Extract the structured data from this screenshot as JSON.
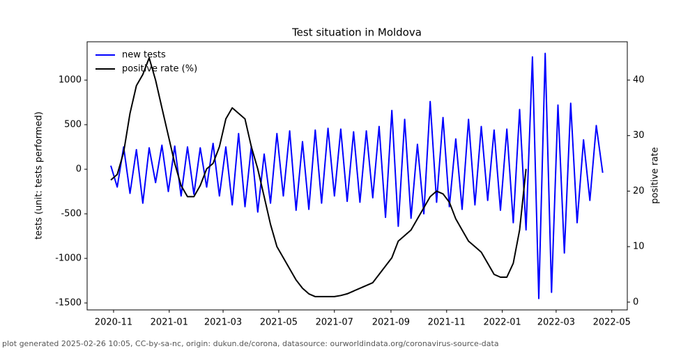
{
  "chart_data": {
    "type": "line",
    "title": "Test situation in Moldova",
    "y_label": "tests (unit: tests performed)",
    "y2_label": "positive rate",
    "footer": "plot generated 2025-02-26 10:05, CC-by-sa-nc, origin: dukun.de/corona, datasource: ourworldindata.org/coronavirus-source-data",
    "legend": "upper left",
    "x": [
      "2020-10-29",
      "2020-11-05",
      "2020-11-12",
      "2020-11-19",
      "2020-11-26",
      "2020-12-03",
      "2020-12-10",
      "2020-12-17",
      "2020-12-24",
      "2020-12-31",
      "2021-01-07",
      "2021-01-14",
      "2021-01-21",
      "2021-01-28",
      "2021-02-04",
      "2021-02-11",
      "2021-02-18",
      "2021-02-25",
      "2021-03-04",
      "2021-03-11",
      "2021-03-18",
      "2021-03-25",
      "2021-04-01",
      "2021-04-08",
      "2021-04-15",
      "2021-04-22",
      "2021-04-29",
      "2021-05-06",
      "2021-05-13",
      "2021-05-20",
      "2021-05-27",
      "2021-06-03",
      "2021-06-10",
      "2021-06-17",
      "2021-06-24",
      "2021-07-01",
      "2021-07-08",
      "2021-07-15",
      "2021-07-22",
      "2021-07-29",
      "2021-08-05",
      "2021-08-12",
      "2021-08-19",
      "2021-08-26",
      "2021-09-02",
      "2021-09-09",
      "2021-09-16",
      "2021-09-23",
      "2021-09-30",
      "2021-10-07",
      "2021-10-14",
      "2021-10-21",
      "2021-10-28",
      "2021-11-04",
      "2021-11-11",
      "2021-11-18",
      "2021-11-25",
      "2021-12-02",
      "2021-12-09",
      "2021-12-16",
      "2021-12-23",
      "2021-12-30",
      "2022-01-06",
      "2022-01-13",
      "2022-01-20",
      "2022-01-27",
      "2022-02-03",
      "2022-02-10",
      "2022-02-17",
      "2022-02-24",
      "2022-03-03",
      "2022-03-10",
      "2022-03-17",
      "2022-03-24",
      "2022-03-31",
      "2022-04-07",
      "2022-04-14",
      "2022-04-21"
    ],
    "series": [
      {
        "name": "new tests",
        "color": "#0000ff",
        "axis": "y",
        "values": [
          40,
          -200,
          250,
          -270,
          220,
          -380,
          240,
          -150,
          270,
          -250,
          260,
          -300,
          250,
          -280,
          240,
          -200,
          290,
          -300,
          250,
          -400,
          400,
          -420,
          260,
          -480,
          170,
          -380,
          400,
          -300,
          430,
          -460,
          310,
          -450,
          440,
          -380,
          460,
          -300,
          450,
          -360,
          420,
          -370,
          430,
          -320,
          480,
          -540,
          660,
          -640,
          560,
          -550,
          280,
          -500,
          760,
          -370,
          580,
          -420,
          340,
          -450,
          560,
          -400,
          480,
          -350,
          440,
          -460,
          450,
          -600,
          670,
          -680,
          1260,
          -1450,
          1300,
          -1380,
          720,
          -940,
          740,
          -600,
          330,
          -350,
          490,
          -40
        ]
      },
      {
        "name": "positive rate (%)",
        "color": "#000000",
        "axis": "y2",
        "values": [
          22,
          23,
          27,
          34,
          39,
          41,
          44,
          40,
          35,
          30,
          25,
          21,
          19,
          19,
          21,
          24,
          25,
          28,
          33,
          35,
          34,
          33,
          28,
          24,
          19,
          14,
          10,
          8,
          6,
          4,
          2.5,
          1.5,
          1,
          1,
          1,
          1,
          1.2,
          1.5,
          2,
          2.5,
          3,
          3.5,
          5,
          6.5,
          8,
          11,
          12,
          13,
          15,
          17,
          19,
          20,
          19.5,
          18,
          15,
          13,
          11,
          10,
          9,
          7,
          5,
          4.5,
          4.5,
          7,
          13,
          24,
          null,
          null,
          null,
          null,
          null,
          null,
          null,
          null,
          null,
          null,
          null,
          null
        ]
      }
    ],
    "xlim": [
      "2020-10-03",
      "2022-05-18"
    ],
    "xticks": [
      "2020-11",
      "2021-01",
      "2021-03",
      "2021-05",
      "2021-07",
      "2021-09",
      "2021-11",
      "2022-01",
      "2022-03",
      "2022-05"
    ],
    "ylim": [
      -1578,
      1430
    ],
    "yticks": [
      -1500,
      -1000,
      -500,
      0,
      500,
      1000
    ],
    "y2lim": [
      -1.4,
      46.9
    ],
    "y2ticks": [
      0,
      10,
      20,
      30,
      40
    ]
  }
}
